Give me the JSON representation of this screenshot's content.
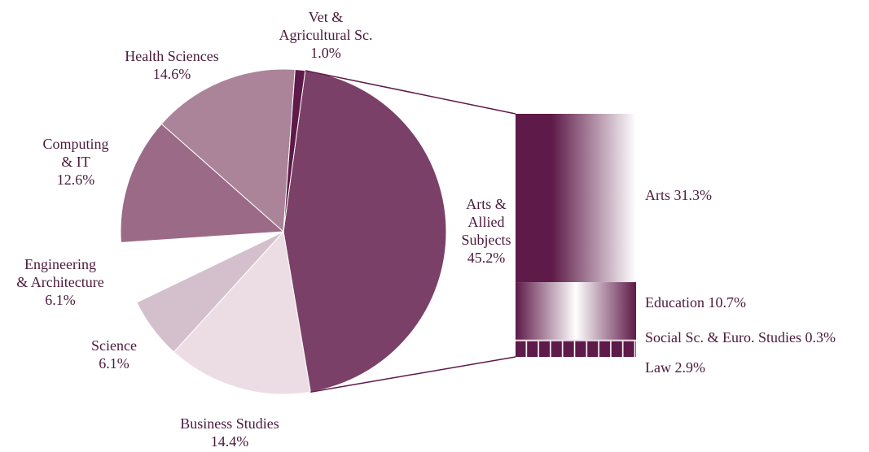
{
  "chart_data": {
    "type": "pie",
    "categories": [
      "Arts &\nAllied\nSubjects",
      "Business Studies",
      "Science",
      "Engineering\n& Architecture",
      "Computing\n& IT",
      "Health Sciences",
      "Vet &\nAgricultural Sc."
    ],
    "values": [
      45.2,
      14.4,
      6.1,
      6.1,
      12.6,
      14.6,
      1.0
    ],
    "value_labels": [
      "45.2%",
      "14.4%",
      "6.1%",
      "6.1%",
      "12.6%",
      "14.6%",
      "1.0%"
    ],
    "colors": [
      "#7b4068",
      "#ecdde4",
      "#d4bfcc",
      "#ffffff",
      "#9a6a87",
      "#ab8499",
      "#5e1a48"
    ],
    "breakdown": {
      "type": "bar",
      "categories": [
        "Arts",
        "Education",
        "Social Sc. & Euro. Studies",
        "Law"
      ],
      "values": [
        31.3,
        10.7,
        0.3,
        2.9
      ],
      "value_labels": [
        "31.3%",
        "10.7%",
        "0.3%",
        "2.9%"
      ],
      "color": "#5e1a48"
    }
  }
}
